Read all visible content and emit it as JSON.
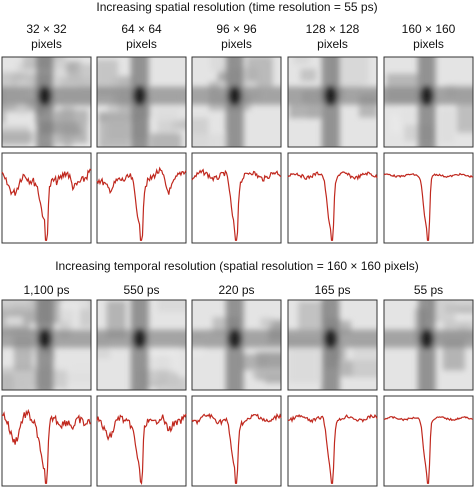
{
  "sections": [
    {
      "title": "Increasing spatial resolution (time resolution = 55 ps)",
      "panels": [
        [
          "32 × 32",
          "pixels"
        ],
        [
          "64 × 64",
          "pixels"
        ],
        [
          "96 × 96",
          "pixels"
        ],
        [
          "128 × 128",
          "pixels"
        ],
        [
          "160 × 160",
          "pixels"
        ]
      ]
    },
    {
      "title": "Increasing temporal resolution (spatial resolution = 160 × 160 pixels)",
      "panels": [
        [
          "1,100 ps"
        ],
        [
          "550 ps"
        ],
        [
          "220 ps"
        ],
        [
          "165 ps"
        ],
        [
          "55 ps"
        ]
      ]
    }
  ]
}
